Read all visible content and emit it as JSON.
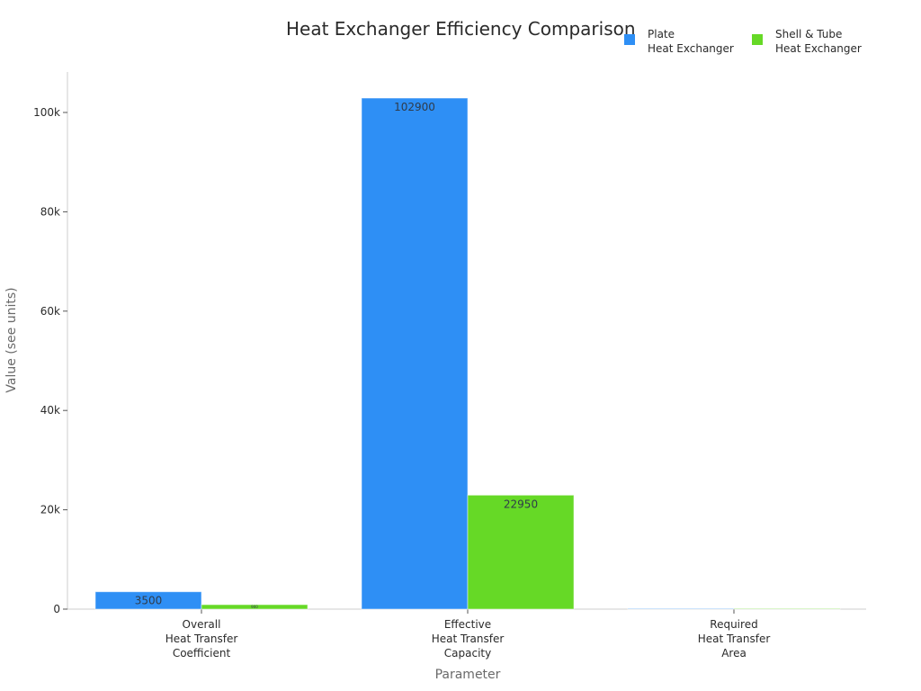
{
  "chart_data": {
    "type": "bar",
    "title": "Heat Exchanger Efficiency Comparison",
    "xlabel": "Parameter",
    "ylabel": "Value (see units)",
    "categories": [
      "Overall\nHeat Transfer\nCoefficient",
      "Effective\nHeat Transfer\nCapacity",
      "Required\nHeat Transfer\nArea"
    ],
    "series": [
      {
        "name": "Plate\nHeat Exchanger",
        "color": "#2e8ff5",
        "values": [
          3500,
          102900,
          2.3
        ],
        "labels": [
          "3500",
          "102900",
          ""
        ]
      },
      {
        "name": "Shell & Tube\nHeat Exchanger",
        "color": "#66d926",
        "values": [
          900,
          22950,
          10.4
        ],
        "labels": [
          "900",
          "22950",
          ""
        ]
      }
    ],
    "yticks": [
      0,
      20000,
      40000,
      60000,
      80000,
      100000
    ],
    "ytick_labels": [
      "0",
      "20k",
      "40k",
      "60k",
      "80k",
      "100k"
    ],
    "ylim": [
      0,
      108000
    ],
    "grid": false,
    "legend_position": "top-right"
  }
}
